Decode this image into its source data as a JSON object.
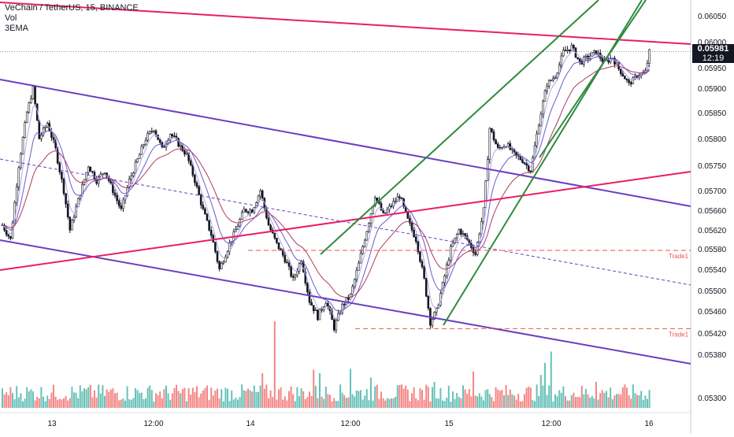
{
  "legend": {
    "title": "VeChain / TetherUS, 15, BINANCE",
    "vol": "Vol",
    "ema": "3EMA"
  },
  "price_badge": {
    "price": "0.05981",
    "countdown": "12:19"
  },
  "trade_labels": [
    "Trade1",
    "Trade1"
  ],
  "colors": {
    "up": "#26a69a",
    "down": "#ef5350",
    "candle": "#131722",
    "channel": "#6a3fc1",
    "trend": "#e91e63",
    "green_lines": "#2e8b3d",
    "trade_line": "#ef5350",
    "ema_fast": "#b3a6e8",
    "ema_mid": "#6a5acd",
    "ema_slow": "#b03a5b"
  },
  "chart_data": {
    "type": "candlestick",
    "title": "VeChain / TetherUS, 15, BINANCE",
    "xlabel": "",
    "ylabel": "",
    "x_ticks": [
      "13",
      "12:00",
      "14",
      "12:00",
      "15",
      "12:00",
      "16"
    ],
    "y_ticks": [
      "0.06050",
      "0.06000",
      "0.05950",
      "0.05900",
      "0.05850",
      "0.05800",
      "0.05750",
      "0.05700",
      "0.05660",
      "0.05620",
      "0.05580",
      "0.05540",
      "0.05500",
      "0.05460",
      "0.05420",
      "0.05380",
      "0.05300"
    ],
    "last_price": 0.05981,
    "price_path": [
      [
        0,
        0.0563
      ],
      [
        4,
        0.056
      ],
      [
        8,
        0.0575
      ],
      [
        12,
        0.0585
      ],
      [
        15,
        0.059
      ],
      [
        18,
        0.058
      ],
      [
        22,
        0.0583
      ],
      [
        26,
        0.0578
      ],
      [
        30,
        0.057
      ],
      [
        33,
        0.0562
      ],
      [
        37,
        0.0568
      ],
      [
        42,
        0.0575
      ],
      [
        46,
        0.0572
      ],
      [
        50,
        0.0574
      ],
      [
        54,
        0.057
      ],
      [
        58,
        0.0566
      ],
      [
        62,
        0.0572
      ],
      [
        66,
        0.0576
      ],
      [
        70,
        0.058
      ],
      [
        74,
        0.0582
      ],
      [
        78,
        0.0578
      ],
      [
        82,
        0.0581
      ],
      [
        86,
        0.0579
      ],
      [
        90,
        0.0577
      ],
      [
        94,
        0.0572
      ],
      [
        98,
        0.0566
      ],
      [
        102,
        0.0561
      ],
      [
        106,
        0.0554
      ],
      [
        110,
        0.0558
      ],
      [
        114,
        0.0562
      ],
      [
        118,
        0.0566
      ],
      [
        122,
        0.0566
      ],
      [
        126,
        0.057
      ],
      [
        130,
        0.0563
      ],
      [
        134,
        0.0559
      ],
      [
        138,
        0.0556
      ],
      [
        142,
        0.0552
      ],
      [
        146,
        0.0556
      ],
      [
        150,
        0.0548
      ],
      [
        154,
        0.0545
      ],
      [
        158,
        0.0548
      ],
      [
        162,
        0.0543
      ],
      [
        166,
        0.0547
      ],
      [
        170,
        0.0549
      ],
      [
        174,
        0.0555
      ],
      [
        178,
        0.0562
      ],
      [
        182,
        0.0569
      ],
      [
        186,
        0.0565
      ],
      [
        190,
        0.0567
      ],
      [
        194,
        0.0569
      ],
      [
        198,
        0.0564
      ],
      [
        202,
        0.056
      ],
      [
        206,
        0.0552
      ],
      [
        209,
        0.0544
      ],
      [
        212,
        0.0546
      ],
      [
        215,
        0.0551
      ],
      [
        219,
        0.0558
      ],
      [
        223,
        0.0562
      ],
      [
        227,
        0.056
      ],
      [
        231,
        0.0557
      ],
      [
        235,
        0.0566
      ],
      [
        238,
        0.0582
      ],
      [
        242,
        0.0578
      ],
      [
        246,
        0.0579
      ],
      [
        250,
        0.0577
      ],
      [
        254,
        0.0576
      ],
      [
        258,
        0.0574
      ],
      [
        262,
        0.0583
      ],
      [
        266,
        0.0591
      ],
      [
        270,
        0.0593
      ],
      [
        274,
        0.0598
      ],
      [
        278,
        0.0599
      ],
      [
        282,
        0.0596
      ],
      [
        286,
        0.0597
      ],
      [
        290,
        0.0598
      ],
      [
        294,
        0.0596
      ],
      [
        298,
        0.0597
      ],
      [
        302,
        0.0594
      ],
      [
        306,
        0.0591
      ],
      [
        310,
        0.0593
      ],
      [
        314,
        0.0594
      ],
      [
        316,
        0.0598
      ]
    ],
    "volume_spikes": [
      [
        133,
        1.0
      ],
      [
        127,
        0.4
      ],
      [
        127,
        0.4
      ],
      [
        152,
        0.44
      ],
      [
        155,
        0.4
      ],
      [
        170,
        0.45
      ],
      [
        180,
        0.35
      ],
      [
        211,
        0.3
      ],
      [
        230,
        0.42
      ],
      [
        268,
        0.65
      ],
      [
        265,
        0.52
      ],
      [
        263,
        0.38
      ],
      [
        290,
        0.3
      ]
    ],
    "trade_levels": [
      {
        "label": "Trade1",
        "price": 0.05577
      },
      {
        "label": "Trade1",
        "price": 0.05428
      }
    ]
  }
}
